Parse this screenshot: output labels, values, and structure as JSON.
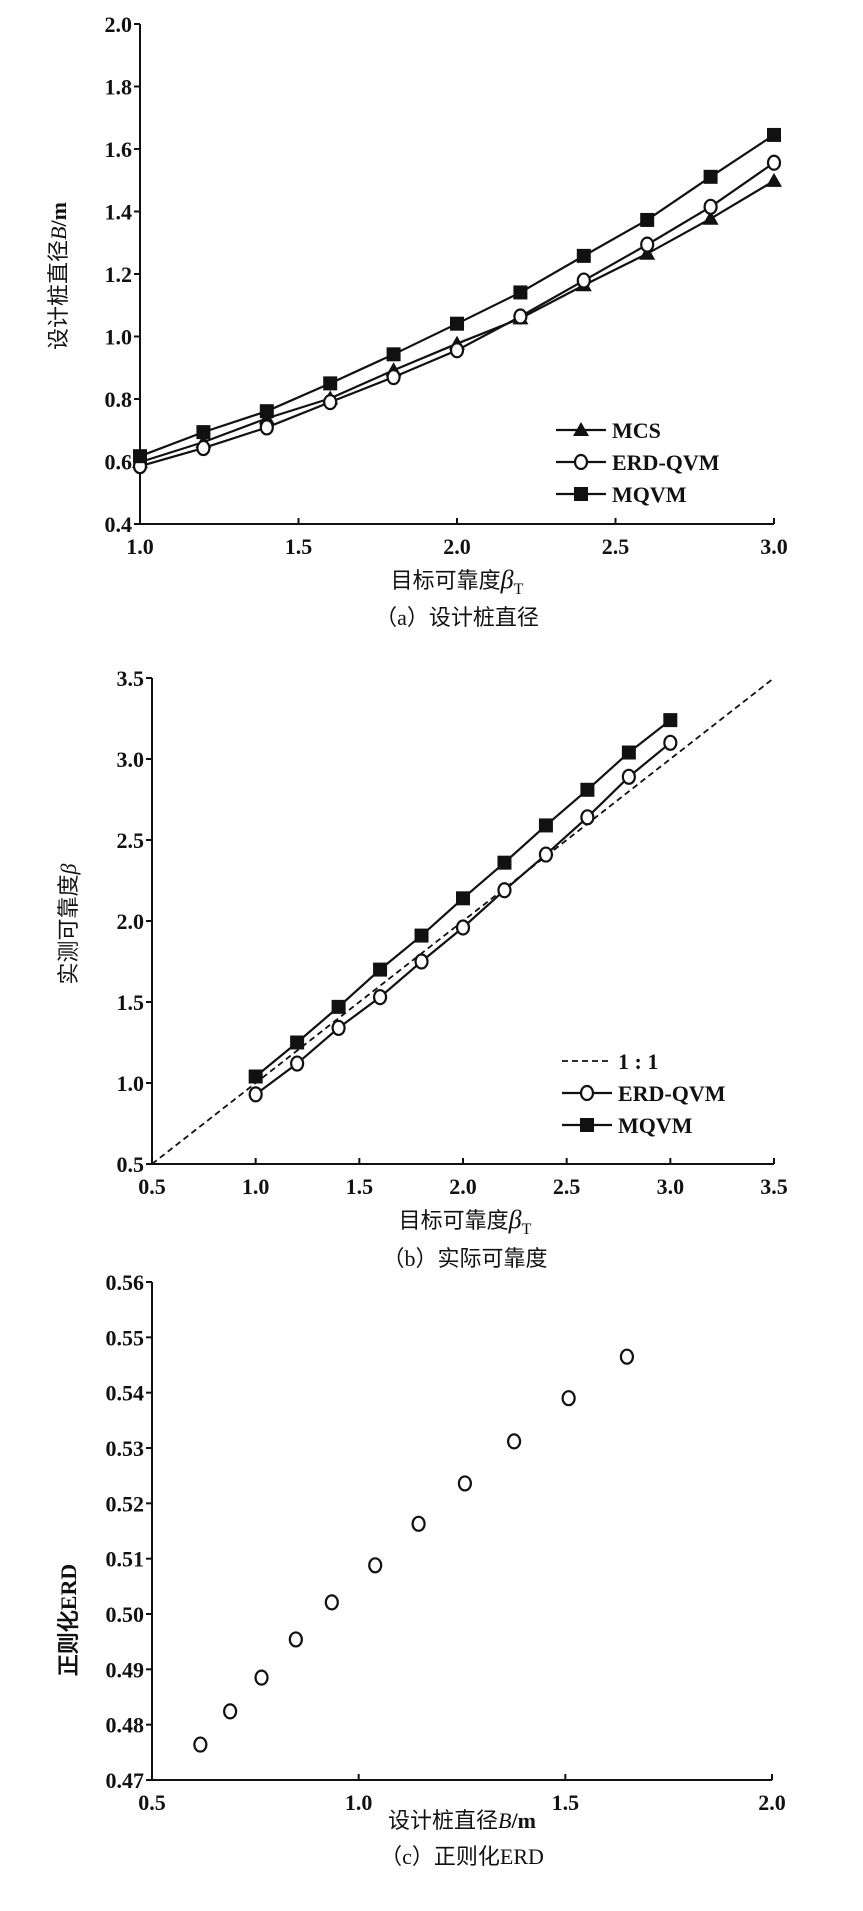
{
  "chart_data": [
    {
      "type": "line",
      "panel": "a",
      "caption": "（a）设计桩直径",
      "xlabel": {
        "text": "目标可靠度",
        "symbol": "β",
        "sub": "T"
      },
      "ylabel": {
        "text": "设计桩直径",
        "symbol": "B",
        "unit": "/m"
      },
      "xlim": [
        1.0,
        3.0
      ],
      "ylim": [
        0.4,
        2.0
      ],
      "xticks": [
        "1.0",
        "1.5",
        "2.0",
        "2.5",
        "3.0"
      ],
      "yticks": [
        "0.4",
        "0.6",
        "0.8",
        "1.0",
        "1.2",
        "1.4",
        "1.6",
        "1.8",
        "2.0"
      ],
      "legend_position": "bottom-right",
      "x": [
        1.0,
        1.2,
        1.4,
        1.6,
        1.8,
        2.0,
        2.2,
        2.4,
        2.6,
        2.8,
        3.0
      ],
      "series": [
        {
          "name": "MCS",
          "marker": "triangle",
          "values": [
            0.598,
            0.662,
            0.738,
            0.802,
            0.892,
            0.977,
            1.058,
            1.164,
            1.265,
            1.377,
            1.498
          ]
        },
        {
          "name": "ERD-QVM",
          "marker": "circle",
          "values": [
            0.585,
            0.643,
            0.709,
            0.79,
            0.87,
            0.956,
            1.064,
            1.179,
            1.294,
            1.415,
            1.556
          ]
        },
        {
          "name": "MQVM",
          "marker": "square",
          "values": [
            0.617,
            0.694,
            0.761,
            0.85,
            0.943,
            1.041,
            1.141,
            1.258,
            1.373,
            1.511,
            1.645
          ]
        }
      ]
    },
    {
      "type": "line",
      "panel": "b",
      "caption": "（b）实际可靠度",
      "xlabel": {
        "text": "目标可靠度",
        "symbol": "β",
        "sub": "T"
      },
      "ylabel": {
        "text": "实测可靠度",
        "symbol": "β",
        "unit": ""
      },
      "xlim": [
        0.5,
        3.5
      ],
      "ylim": [
        0.5,
        3.5
      ],
      "xticks": [
        "0.5",
        "1.0",
        "1.5",
        "2.0",
        "2.5",
        "3.0",
        "3.5"
      ],
      "yticks": [
        "0.5",
        "1.0",
        "1.5",
        "2.0",
        "2.5",
        "3.0",
        "3.5"
      ],
      "legend_position": "bottom-right",
      "x": [
        1.0,
        1.2,
        1.4,
        1.6,
        1.8,
        2.0,
        2.2,
        2.4,
        2.6,
        2.8,
        3.0
      ],
      "series": [
        {
          "name": "1 : 1",
          "marker": "dashed",
          "x": [
            0.5,
            3.5
          ],
          "values": [
            0.5,
            3.5
          ]
        },
        {
          "name": "ERD-QVM",
          "marker": "circle",
          "values": [
            0.93,
            1.12,
            1.34,
            1.53,
            1.75,
            1.96,
            2.19,
            2.41,
            2.64,
            2.89,
            3.1
          ]
        },
        {
          "name": "MQVM",
          "marker": "square",
          "values": [
            1.04,
            1.25,
            1.47,
            1.7,
            1.91,
            2.14,
            2.36,
            2.59,
            2.81,
            3.04,
            3.24
          ]
        }
      ]
    },
    {
      "type": "scatter",
      "panel": "c",
      "caption": "（c）正则化ERD",
      "xlabel": {
        "text": "设计桩直径",
        "symbol": "B",
        "sub": "",
        "unit": "/m"
      },
      "ylabel": {
        "text": "正则化ERD",
        "symbol": "",
        "unit": ""
      },
      "xlim": [
        0.5,
        2.0
      ],
      "ylim": [
        0.47,
        0.56
      ],
      "xticks": [
        "0.5",
        "1.0",
        "1.5",
        "2.0"
      ],
      "yticks": [
        "0.47",
        "0.48",
        "0.49",
        "0.50",
        "0.51",
        "0.52",
        "0.53",
        "0.54",
        "0.55",
        "0.56"
      ],
      "series": [
        {
          "name": "ERD",
          "marker": "circle",
          "x": [
            0.617,
            0.689,
            0.765,
            0.848,
            0.935,
            1.04,
            1.145,
            1.257,
            1.376,
            1.508,
            1.649
          ],
          "values": [
            0.4764,
            0.4824,
            0.4885,
            0.4954,
            0.5021,
            0.5088,
            0.5163,
            0.5236,
            0.5312,
            0.539,
            0.5465
          ]
        }
      ]
    }
  ]
}
